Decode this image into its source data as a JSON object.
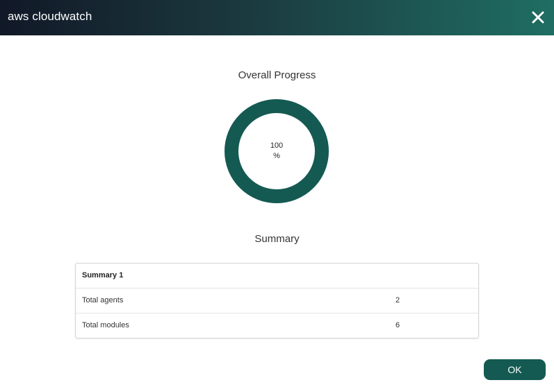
{
  "window": {
    "title": "aws cloudwatch",
    "close_icon": "close-icon"
  },
  "progress": {
    "heading": "Overall Progress",
    "value": 100,
    "value_text": "100",
    "unit": "%",
    "ring_color": "#145a52"
  },
  "summary": {
    "heading": "Summary",
    "table_title": "Summary 1",
    "rows": [
      {
        "label": "Total agents",
        "value": "2"
      },
      {
        "label": "Total modules",
        "value": "6"
      }
    ]
  },
  "actions": {
    "ok_label": "OK",
    "ok_color": "#145a52"
  }
}
